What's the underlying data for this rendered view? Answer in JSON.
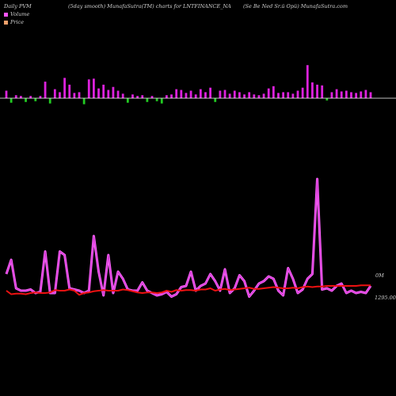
{
  "header": {
    "left": "Daily PVM",
    "smoothing": "(5day smooth) MunafaSutra(TM) charts for LNTFINANCE_NA",
    "right": "(Se  Be  Ned Sr.ü  Opü) MunafaSutra.com"
  },
  "legend": {
    "items": [
      {
        "label": "Volume",
        "color": "#ff55ff"
      },
      {
        "label": "Price",
        "color": "#f4a16b"
      }
    ]
  },
  "colors": {
    "volume_up": "#dd22dd",
    "volume_down": "#22cc22",
    "volume_neutral": "#ee2222",
    "pvm_line": "#ff66ff",
    "pvm_core": "#cc33cc",
    "price_line": "#ee1111",
    "baseline": "#ffffff"
  },
  "chart_data": {
    "type": "bar",
    "x": [
      1,
      2,
      3,
      4,
      5,
      6,
      7,
      8,
      9,
      10,
      11,
      12,
      13,
      14,
      15,
      16,
      17,
      18,
      19,
      20,
      21,
      22,
      23,
      24,
      25,
      26,
      27,
      28,
      29,
      30,
      31,
      32,
      33,
      34,
      35,
      36,
      37,
      38,
      39,
      40,
      41,
      42,
      43,
      44,
      45,
      46,
      47,
      48,
      49,
      50,
      51,
      52,
      53,
      54,
      55,
      56,
      57,
      58,
      59,
      60,
      61,
      62,
      63,
      64,
      65,
      66,
      67,
      68,
      69,
      70,
      71,
      72,
      73,
      74,
      75,
      76
    ],
    "volume": [
      10,
      -6,
      4,
      3,
      -5,
      3,
      -4,
      3,
      22,
      -7,
      12,
      8,
      27,
      18,
      7,
      8,
      -8,
      25,
      26,
      13,
      18,
      11,
      15,
      10,
      6,
      -6,
      5,
      3,
      4,
      -5,
      3,
      -4,
      -7,
      4,
      5,
      12,
      11,
      7,
      10,
      5,
      12,
      8,
      14,
      -5,
      10,
      11,
      6,
      10,
      8,
      5,
      8,
      5,
      4,
      6,
      13,
      16,
      7,
      8,
      8,
      6,
      10,
      14,
      44,
      21,
      18,
      17,
      -3,
      8,
      12,
      9,
      10,
      8,
      7,
      9,
      11,
      8
    ],
    "series": [
      {
        "name": "Volume",
        "values": [
          28,
          40,
          16,
          14,
          14,
          15,
          12,
          13,
          47,
          12,
          12,
          47,
          44,
          16,
          15,
          14,
          12,
          14,
          60,
          30,
          10,
          44,
          12,
          30,
          24,
          15,
          14,
          14,
          21,
          14,
          12,
          10,
          11,
          13,
          9,
          11,
          17,
          18,
          30,
          14,
          18,
          20,
          28,
          22,
          14,
          32,
          12,
          16,
          27,
          22,
          9,
          14,
          20,
          22,
          26,
          24,
          14,
          10,
          33,
          24,
          12,
          15,
          24,
          28,
          108,
          15,
          16,
          14,
          18,
          20,
          12,
          14,
          12,
          13,
          12,
          18
        ]
      },
      {
        "name": "Price",
        "values": [
          14.0,
          11.0,
          11.5,
          11.5,
          11.0,
          12.0,
          12.5,
          12.0,
          12.0,
          12.5,
          14.5,
          14.0,
          14.0,
          15.0,
          14.0,
          10.5,
          12.0,
          12.5,
          13.5,
          14.0,
          14.5,
          14.0,
          14.0,
          14.0,
          15.0,
          14.5,
          13.5,
          12.5,
          12.0,
          12.5,
          12.5,
          12.0,
          12.5,
          14.0,
          13.0,
          14.5,
          14.0,
          14.5,
          14.5,
          14.0,
          15.0,
          15.0,
          16.0,
          14.0,
          15.0,
          15.5,
          14.5,
          15.0,
          15.5,
          16.0,
          16.5,
          15.5,
          15.5,
          16.0,
          16.5,
          17.0,
          16.5,
          16.0,
          16.0,
          16.5,
          16.0,
          17.0,
          17.5,
          17.0,
          17.5,
          17.5,
          18.0,
          18.0,
          18.0,
          18.0,
          18.0,
          18.0,
          18.0,
          18.5,
          18.5,
          18.5
        ]
      }
    ],
    "y_labels": {
      "volume": "0M",
      "price": "1295.00"
    },
    "grid": false
  }
}
